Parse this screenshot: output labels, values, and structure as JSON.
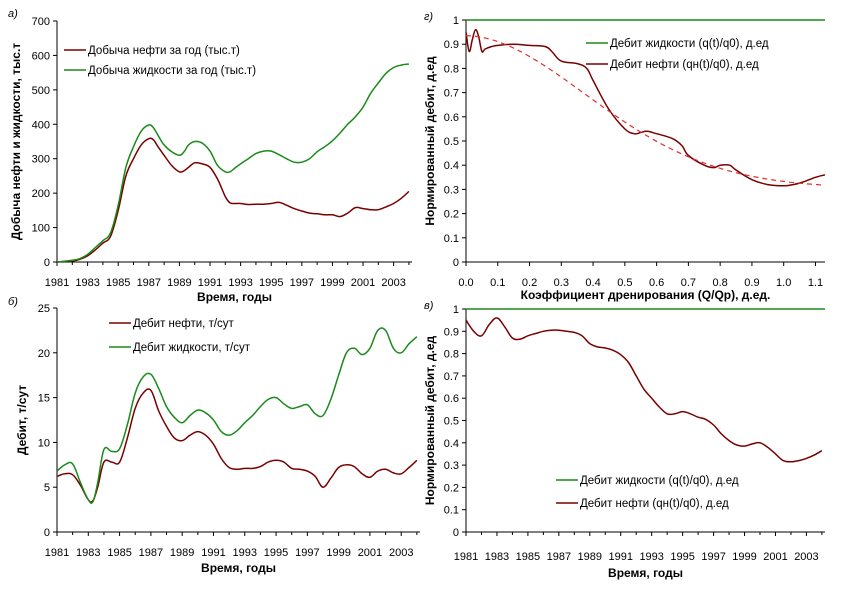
{
  "colors": {
    "oil": "#7a0000",
    "liquid": "#1a8a1a",
    "dash": "#e03030",
    "axis": "#000000"
  },
  "chart_data": [
    {
      "id": "a",
      "panel_label": "а)",
      "type": "line",
      "xlabel": "Время, годы",
      "ylabel": "Добыча нефти и жидкости, тыс.т",
      "xlim": [
        1981,
        2004.2
      ],
      "ylim": [
        0,
        700
      ],
      "xticks": [
        "1981",
        "1983",
        "1985",
        "1987",
        "1989",
        "1991",
        "1993",
        "1995",
        "1997",
        "1999",
        "2001",
        "2003"
      ],
      "yticks": [
        "0",
        "100",
        "200",
        "300",
        "400",
        "500",
        "600",
        "700"
      ],
      "legend_position": "top-left",
      "series": [
        {
          "name": "Добыча нефти за год (тыс.т)",
          "color_key": "oil",
          "x": [
            1981,
            1982,
            1982.5,
            1983,
            1983.5,
            1984,
            1984.5,
            1985,
            1985.5,
            1986,
            1986.5,
            1987,
            1987.3,
            1987.6,
            1988,
            1988.5,
            1989,
            1989.3,
            1989.6,
            1990,
            1990.5,
            1991,
            1991.5,
            1992,
            1992.3,
            1992.6,
            1993,
            1993.5,
            1994,
            1994.5,
            1995,
            1995.5,
            1996,
            1996.5,
            1997,
            1997.5,
            1998,
            1998.5,
            1999,
            1999.5,
            2000,
            2000.5,
            2001,
            2001.5,
            2002,
            2002.5,
            2003,
            2003.5,
            2004
          ],
          "y": [
            0,
            3,
            8,
            18,
            35,
            55,
            75,
            150,
            250,
            300,
            340,
            358,
            355,
            335,
            310,
            280,
            262,
            265,
            275,
            288,
            285,
            275,
            240,
            190,
            172,
            170,
            170,
            167,
            168,
            168,
            170,
            173,
            165,
            155,
            148,
            142,
            140,
            137,
            137,
            132,
            142,
            158,
            155,
            152,
            152,
            160,
            170,
            185,
            205
          ]
        },
        {
          "name": "Добыча жидкости за год (тыс.т)",
          "color_key": "liquid",
          "x": [
            1981,
            1982,
            1982.5,
            1983,
            1983.5,
            1984,
            1984.5,
            1985,
            1985.5,
            1986,
            1986.5,
            1987,
            1987.3,
            1987.6,
            1988,
            1988.5,
            1989,
            1989.3,
            1989.6,
            1990,
            1990.5,
            1991,
            1991.5,
            1992,
            1992.3,
            1992.6,
            1993,
            1993.5,
            1994,
            1994.5,
            1995,
            1995.5,
            1996,
            1996.5,
            1997,
            1997.5,
            1998,
            1998.5,
            1999,
            1999.5,
            2000,
            2000.5,
            2001,
            2001.5,
            2002,
            2002.5,
            2003,
            2003.5,
            2004
          ],
          "y": [
            0,
            5,
            10,
            22,
            42,
            62,
            85,
            165,
            275,
            335,
            380,
            398,
            390,
            368,
            340,
            320,
            310,
            320,
            340,
            350,
            345,
            322,
            280,
            262,
            262,
            272,
            285,
            300,
            315,
            322,
            322,
            312,
            300,
            290,
            290,
            300,
            320,
            335,
            352,
            375,
            400,
            422,
            450,
            490,
            520,
            548,
            565,
            572,
            575
          ]
        }
      ]
    },
    {
      "id": "b",
      "panel_label": "б)",
      "type": "line",
      "xlabel": "Время, годы",
      "ylabel": "Дебит, т/сут",
      "xlim": [
        1981,
        2004.2
      ],
      "ylim": [
        0,
        25
      ],
      "xticks": [
        "1981",
        "1983",
        "1985",
        "1987",
        "1989",
        "1991",
        "1993",
        "1995",
        "1997",
        "1999",
        "2001",
        "2003"
      ],
      "yticks": [
        "0",
        "5",
        "10",
        "15",
        "20",
        "25"
      ],
      "legend_position": "top-center",
      "series": [
        {
          "name": "Дебит нефти, т/сут",
          "color_key": "oil",
          "x": [
            1981,
            1981.5,
            1982,
            1982.5,
            1983,
            1983.3,
            1983.6,
            1984,
            1984.5,
            1985,
            1985.5,
            1986,
            1986.5,
            1987,
            1987.5,
            1988,
            1988.5,
            1989,
            1989.5,
            1990,
            1990.5,
            1991,
            1991.5,
            1992,
            1992.5,
            1993,
            1993.5,
            1994,
            1994.5,
            1995,
            1995.5,
            1996,
            1996.5,
            1997,
            1997.5,
            1998,
            1998.5,
            1999,
            1999.5,
            2000,
            2000.5,
            2001,
            2001.5,
            2002,
            2002.5,
            2003,
            2003.5,
            2004
          ],
          "y": [
            6.2,
            6.5,
            6.4,
            5.2,
            3.6,
            3.5,
            5,
            7.8,
            7.8,
            7.8,
            10.5,
            13.8,
            15.5,
            15.8,
            13.5,
            11.8,
            10.5,
            10.2,
            10.8,
            11.2,
            10.8,
            9.8,
            8.2,
            7.2,
            7,
            7.1,
            7.1,
            7.3,
            7.8,
            8,
            7.8,
            7.1,
            7,
            6.8,
            6.2,
            5,
            6,
            7.2,
            7.5,
            7.3,
            6.5,
            6.1,
            6.8,
            7,
            6.6,
            6.5,
            7.2,
            8
          ]
        },
        {
          "name": "Дебит жидкости, т/сут",
          "color_key": "liquid",
          "x": [
            1981,
            1981.5,
            1982,
            1982.5,
            1983,
            1983.3,
            1983.6,
            1984,
            1984.5,
            1985,
            1985.5,
            1986,
            1986.5,
            1987,
            1987.5,
            1988,
            1988.5,
            1989,
            1989.5,
            1990,
            1990.5,
            1991,
            1991.5,
            1992,
            1992.5,
            1993,
            1993.5,
            1994,
            1994.5,
            1995,
            1995.5,
            1996,
            1996.5,
            1997,
            1997.5,
            1998,
            1998.5,
            1999,
            1999.5,
            2000,
            2000.5,
            2001,
            2001.5,
            2002,
            2002.5,
            2003,
            2003.5,
            2004
          ],
          "y": [
            6.8,
            7.5,
            7.6,
            5.5,
            3.6,
            3.4,
            5.5,
            9.2,
            9,
            9.3,
            12,
            15.5,
            17.3,
            17.6,
            16,
            14,
            12.8,
            12.2,
            13,
            13.6,
            13.3,
            12.5,
            11.2,
            10.8,
            11.3,
            12.2,
            13,
            14,
            14.8,
            15,
            14.3,
            13.8,
            14,
            14.2,
            13.2,
            13,
            14.8,
            17.5,
            20,
            20.5,
            19.8,
            20.5,
            22.5,
            22.5,
            20.5,
            20,
            21,
            21.8
          ]
        }
      ]
    },
    {
      "id": "g",
      "panel_label": "г)",
      "type": "line",
      "xlabel": "Коэффициент дренирования (Q/Qp), д.ед.",
      "ylabel": "Нормированный дебит, д.ед",
      "xlim": [
        0,
        1.13
      ],
      "ylim": [
        0,
        1
      ],
      "xticks": [
        "0.0",
        "0.1",
        "0.2",
        "0.3",
        "0.4",
        "0.5",
        "0.6",
        "0.7",
        "0.8",
        "0.9",
        "1.0",
        "1.1"
      ],
      "yticks": [
        "0",
        "0.1",
        "0.2",
        "0.3",
        "0.4",
        "0.5",
        "0.6",
        "0.7",
        "0.8",
        "0.9",
        "1"
      ],
      "legend_position": "top-right",
      "series": [
        {
          "name": "Дебит жидкости (q(t)/q0), д.ед",
          "color_key": "liquid",
          "x": [
            0,
            1.13
          ],
          "y": [
            1,
            1
          ]
        },
        {
          "name": "Дебит нефти (qн(t)/q0), д.ед",
          "color_key": "oil",
          "x": [
            0,
            0.01,
            0.02,
            0.03,
            0.04,
            0.05,
            0.06,
            0.08,
            0.1,
            0.15,
            0.2,
            0.25,
            0.27,
            0.3,
            0.35,
            0.38,
            0.4,
            0.45,
            0.5,
            0.53,
            0.55,
            0.57,
            0.6,
            0.65,
            0.68,
            0.7,
            0.75,
            0.78,
            0.8,
            0.83,
            0.85,
            0.9,
            0.95,
            1,
            1.03,
            1.06,
            1.1,
            1.13
          ],
          "y": [
            0.95,
            0.87,
            0.92,
            0.96,
            0.93,
            0.87,
            0.88,
            0.89,
            0.895,
            0.9,
            0.895,
            0.89,
            0.87,
            0.83,
            0.82,
            0.8,
            0.75,
            0.63,
            0.55,
            0.53,
            0.535,
            0.54,
            0.53,
            0.51,
            0.48,
            0.44,
            0.4,
            0.39,
            0.4,
            0.4,
            0.38,
            0.34,
            0.32,
            0.315,
            0.32,
            0.33,
            0.35,
            0.36
          ]
        }
      ]
    },
    {
      "id": "v",
      "panel_label": "в)",
      "type": "line",
      "xlabel": "Время, годы",
      "ylabel": "Нормированный дебит, д.ед",
      "xlim": [
        1981,
        2004.2
      ],
      "ylim": [
        0,
        1
      ],
      "xticks": [
        "1981",
        "1983",
        "1985",
        "1987",
        "1989",
        "1991",
        "1993",
        "1995",
        "1997",
        "1999",
        "2001",
        "2003"
      ],
      "yticks": [
        "0",
        "0.1",
        "0.2",
        "0.3",
        "0.4",
        "0.5",
        "0.6",
        "0.7",
        "0.8",
        "0.9",
        "1"
      ],
      "legend_position": "bottom-right",
      "series": [
        {
          "name": "Дебит жидкости (q(t)/q0), д.ед",
          "color_key": "liquid",
          "x": [
            1981,
            2004.2
          ],
          "y": [
            1,
            1
          ]
        },
        {
          "name": "Дебит нефти (qн(t)/q0), д.ед",
          "color_key": "oil",
          "x": [
            1981,
            1981.5,
            1982,
            1982.5,
            1983,
            1983.5,
            1984,
            1984.5,
            1985,
            1985.5,
            1986,
            1986.5,
            1987,
            1987.5,
            1988,
            1988.5,
            1989,
            1989.5,
            1990,
            1990.5,
            1991,
            1991.5,
            1992,
            1992.5,
            1993,
            1993.5,
            1994,
            1994.5,
            1995,
            1995.5,
            1996,
            1996.5,
            1997,
            1997.5,
            1998,
            1998.5,
            1999,
            1999.5,
            2000,
            2000.5,
            2001,
            2001.5,
            2002,
            2002.5,
            2003,
            2003.5,
            2004
          ],
          "y": [
            0.95,
            0.9,
            0.88,
            0.93,
            0.96,
            0.92,
            0.87,
            0.865,
            0.88,
            0.89,
            0.9,
            0.905,
            0.905,
            0.9,
            0.895,
            0.88,
            0.845,
            0.83,
            0.825,
            0.815,
            0.795,
            0.76,
            0.7,
            0.64,
            0.6,
            0.56,
            0.53,
            0.53,
            0.54,
            0.53,
            0.515,
            0.505,
            0.48,
            0.44,
            0.41,
            0.39,
            0.385,
            0.395,
            0.4,
            0.38,
            0.35,
            0.32,
            0.315,
            0.32,
            0.33,
            0.345,
            0.365
          ]
        }
      ]
    }
  ]
}
